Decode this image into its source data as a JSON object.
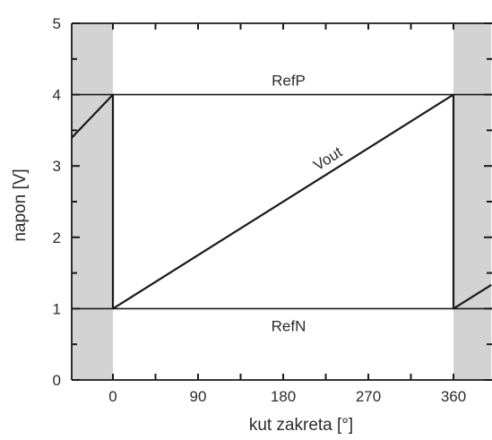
{
  "chart_data": {
    "type": "line",
    "xlabel": "kut zakreta [°]",
    "ylabel": "napon [V]",
    "xlim": [
      -45,
      400
    ],
    "ylim": [
      0,
      5
    ],
    "x_ticks": [
      0,
      90,
      180,
      270,
      360
    ],
    "y_ticks": [
      0,
      1,
      2,
      3,
      4,
      5
    ],
    "grid": false,
    "shaded_regions": [
      [
        -45,
        0
      ],
      [
        360,
        400
      ]
    ],
    "colors": {
      "line": "#1a1a1a",
      "shade": "#d3d3d3",
      "axis": "#1a1a1a",
      "text": "#2b2b2b"
    },
    "series": [
      {
        "name": "Vout",
        "segments": [
          {
            "x": [
              -45,
              0
            ],
            "y": [
              3.375,
              4
            ]
          },
          {
            "x": [
              0,
              0
            ],
            "y": [
              4,
              1
            ]
          },
          {
            "x": [
              0,
              360
            ],
            "y": [
              1,
              4
            ]
          },
          {
            "x": [
              360,
              360
            ],
            "y": [
              4,
              1
            ]
          },
          {
            "x": [
              360,
              400
            ],
            "y": [
              1,
              1.333
            ]
          }
        ]
      }
    ],
    "reference_lines": [
      {
        "name": "RefP",
        "y": 4
      },
      {
        "name": "RefN",
        "y": 1
      }
    ]
  }
}
